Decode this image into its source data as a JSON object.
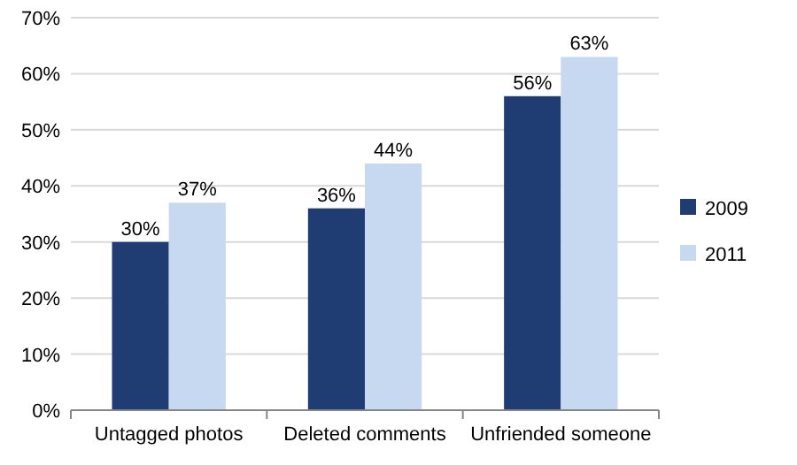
{
  "chart_data": {
    "type": "bar",
    "categories": [
      "Untagged photos",
      "Deleted comments",
      "Unfriended someone"
    ],
    "series": [
      {
        "name": "2009",
        "color": "#1f3d73",
        "values": [
          30,
          36,
          56
        ],
        "value_labels": [
          "30%",
          "36%",
          "56%"
        ]
      },
      {
        "name": "2011",
        "color": "#c6d9f1",
        "values": [
          37,
          44,
          63
        ],
        "value_labels": [
          "37%",
          "44%",
          "63%"
        ]
      }
    ],
    "ylim": [
      0,
      70
    ],
    "yticks": [
      {
        "value": 0,
        "label": "0%"
      },
      {
        "value": 10,
        "label": "10%"
      },
      {
        "value": 20,
        "label": "20%"
      },
      {
        "value": 30,
        "label": "30%"
      },
      {
        "value": 40,
        "label": "40%"
      },
      {
        "value": 50,
        "label": "50%"
      },
      {
        "value": 60,
        "label": "60%"
      },
      {
        "value": 70,
        "label": "70%"
      }
    ],
    "grid": "y",
    "legend": "right"
  }
}
